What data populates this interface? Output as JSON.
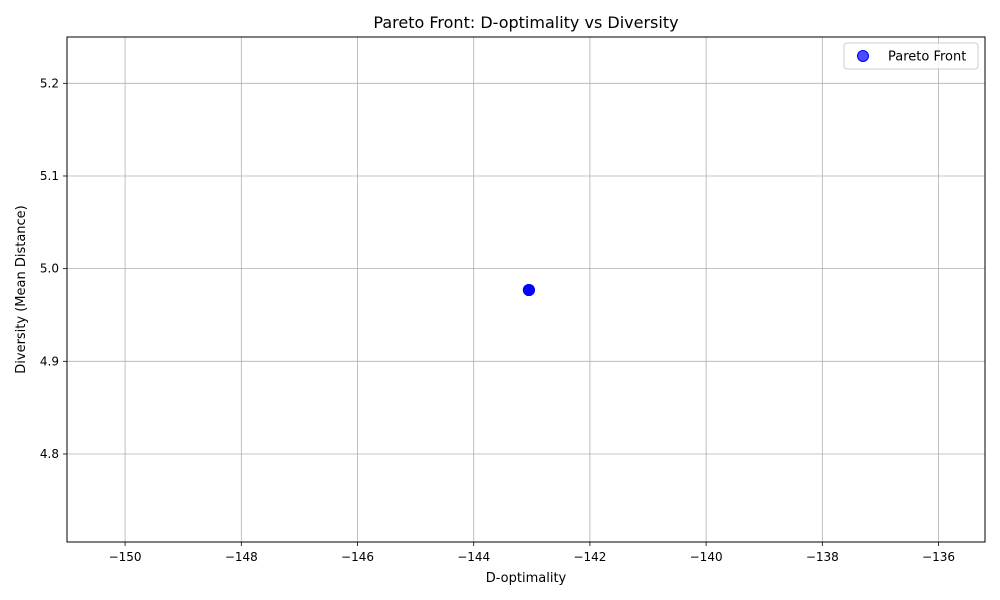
{
  "chart_data": {
    "type": "scatter",
    "title": "Pareto Front: D-optimality vs Diversity",
    "xlabel": "D-optimality",
    "ylabel": "Diversity (Mean Distance)",
    "xlim": [
      -151.0,
      -135.2
    ],
    "ylim": [
      4.705,
      5.25
    ],
    "xticks": [
      -150,
      -148,
      -146,
      -144,
      -142,
      -140,
      -138,
      -136
    ],
    "xtick_labels": [
      "−150",
      "−148",
      "−146",
      "−144",
      "−142",
      "−140",
      "−138",
      "−136"
    ],
    "yticks": [
      4.8,
      4.9,
      5.0,
      5.1,
      5.2
    ],
    "ytick_labels": [
      "4.8",
      "4.9",
      "5.0",
      "5.1",
      "5.2"
    ],
    "grid": true,
    "legend": {
      "position": "top-right",
      "entries": [
        "Pareto Front"
      ]
    },
    "series": [
      {
        "name": "Pareto Front",
        "color": "#0000ff",
        "points": [
          {
            "x": -143.05,
            "y": 4.977
          },
          {
            "x": -143.05,
            "y": 4.977
          },
          {
            "x": -143.05,
            "y": 4.977
          }
        ]
      }
    ]
  }
}
